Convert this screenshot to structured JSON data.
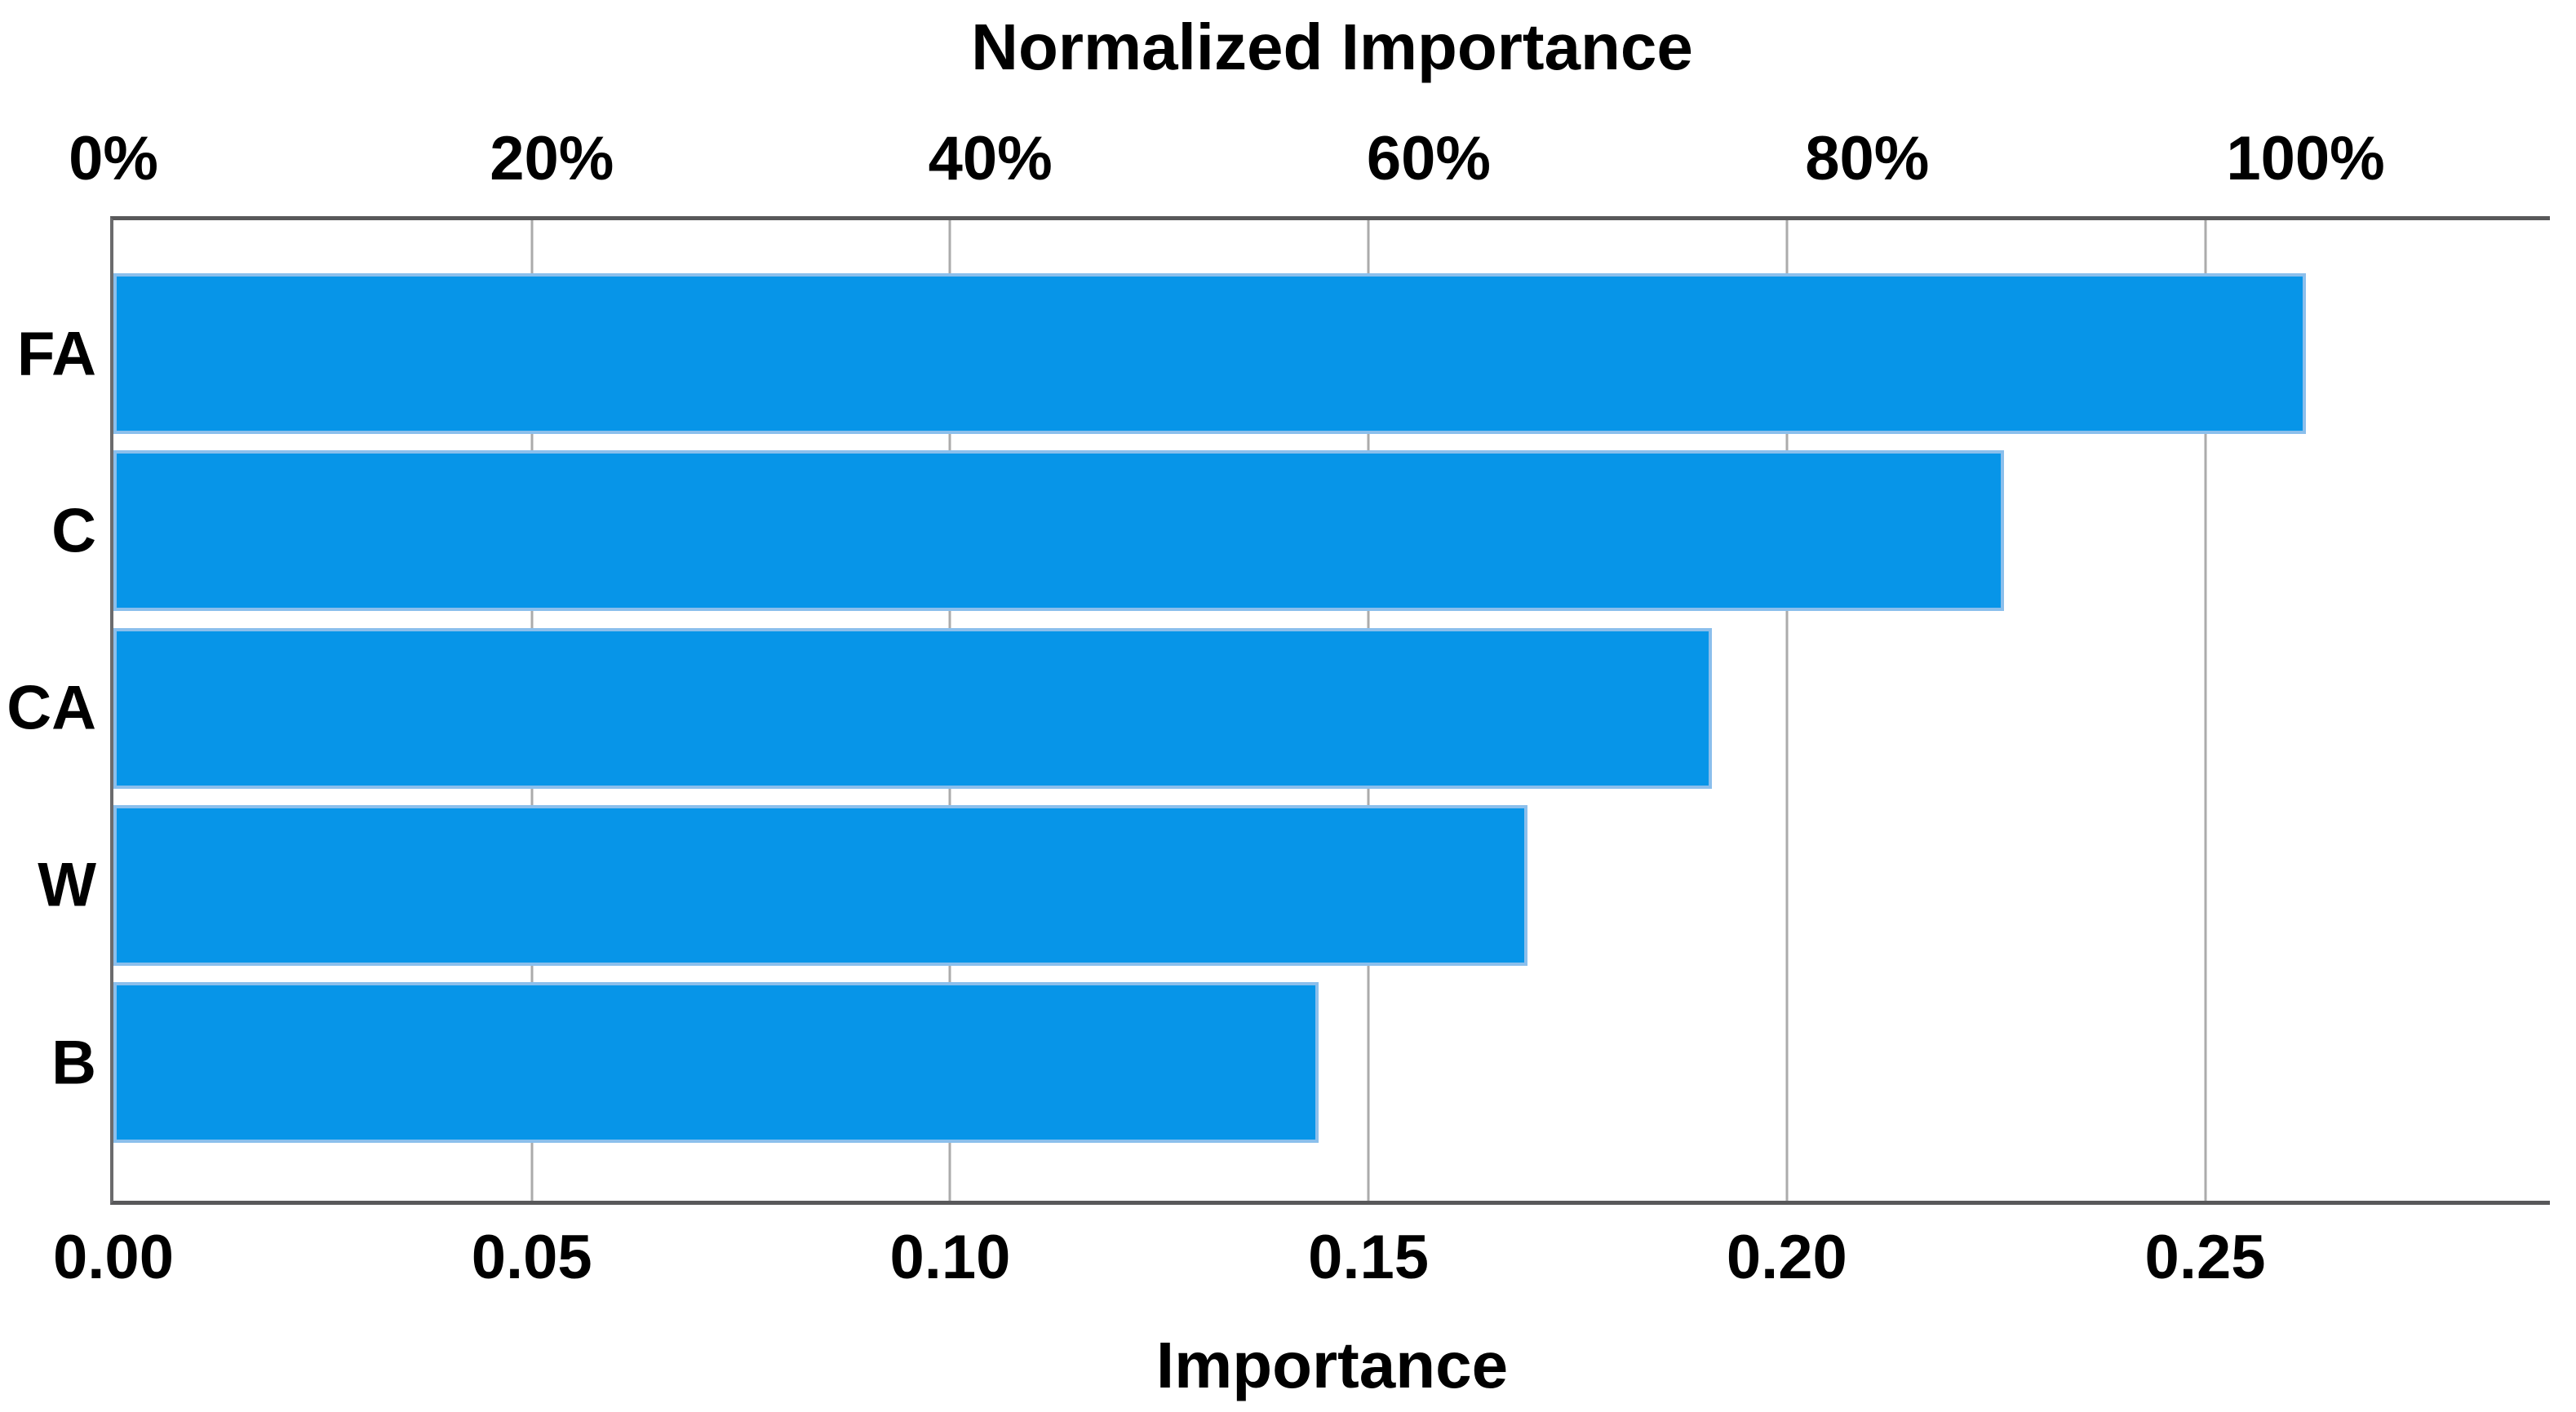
{
  "chart_data": {
    "type": "bar",
    "orientation": "horizontal",
    "title": "Normalized Importance",
    "xlabel": "Importance",
    "categories": [
      "FA",
      "C",
      "CA",
      "W",
      "B"
    ],
    "values": [
      0.262,
      0.226,
      0.191,
      0.169,
      0.144
    ],
    "normalized_pct": [
      100,
      86.3,
      72.9,
      64.5,
      55.0
    ],
    "top_axis": {
      "tick_labels": [
        "0%",
        "20%",
        "40%",
        "60%",
        "80%",
        "100%"
      ],
      "tick_values_pct": [
        0,
        20,
        40,
        60,
        80,
        100
      ]
    },
    "bottom_axis": {
      "tick_labels": [
        "0.00",
        "0.05",
        "0.10",
        "0.15",
        "0.20",
        "0.25"
      ],
      "tick_values": [
        0.0,
        0.05,
        0.1,
        0.15,
        0.2,
        0.25
      ]
    },
    "xlim": [
      0,
      0.2912
    ],
    "gridlines_x": [
      0.05,
      0.1,
      0.15,
      0.2,
      0.25
    ],
    "grid": "vertical-only",
    "legend": "none",
    "colors": {
      "bar_fill": "#0795E8",
      "bar_border": "#8BBFEC",
      "axis_line": "#58585A",
      "gridline": "#ABABAB",
      "text": "#000000",
      "background": "#FFFFFF"
    }
  }
}
